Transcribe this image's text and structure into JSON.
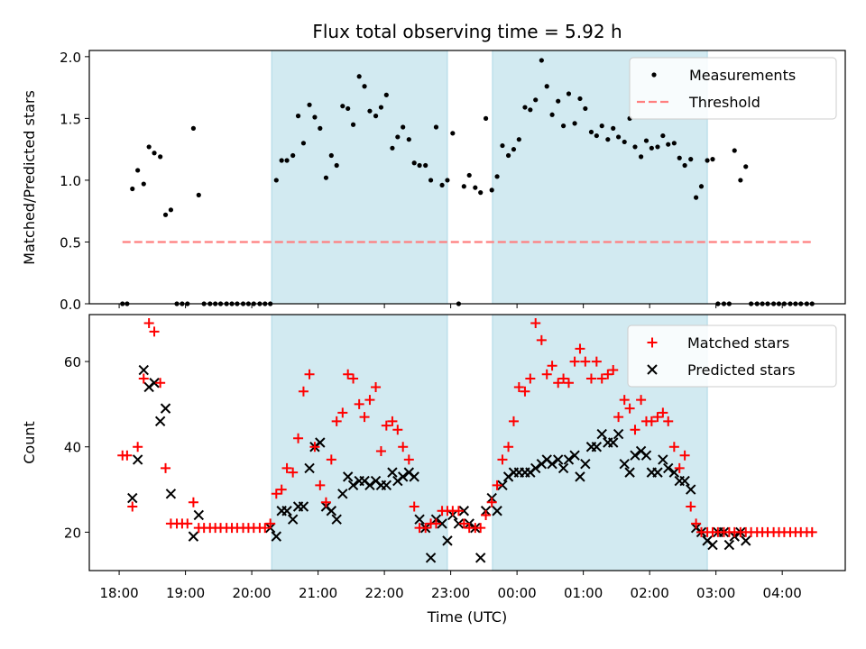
{
  "title": "Flux total observing time = 5.92 h",
  "colors": {
    "band": "#add8e6",
    "measurement": "#000000",
    "threshold": "#ff7f7f",
    "matched": "#ff0000",
    "predicted": "#000000"
  },
  "chart_data": [
    {
      "type": "scatter",
      "title": "Flux total observing time = 5.92 h",
      "xlabel": "",
      "ylabel": "Matched/Predicted stars",
      "xlim": [
        17.55,
        28.95
      ],
      "ylim": [
        0,
        2.05
      ],
      "yticks": [
        0.0,
        0.5,
        1.0,
        1.5,
        2.0
      ],
      "ytick_labels": [
        "0.0",
        "0.5",
        "1.0",
        "1.5",
        "2.0"
      ],
      "grid": false,
      "legend": {
        "position": "top-right",
        "entries": [
          {
            "label": "Measurements",
            "marker": "dot",
            "color": "#000000"
          },
          {
            "label": "Threshold",
            "marker": "dashed-line",
            "color": "#ff7f7f"
          }
        ]
      },
      "shaded_intervals": [
        [
          20.3,
          22.95
        ],
        [
          23.63,
          26.87
        ]
      ],
      "threshold": {
        "y": 0.5,
        "x_range": [
          18.05,
          28.45
        ],
        "label": "Threshold"
      },
      "series": [
        {
          "name": "Measurements",
          "x": [
            18.05,
            18.12,
            18.2,
            18.28,
            18.37,
            18.45,
            18.53,
            18.62,
            18.7,
            18.78,
            18.87,
            18.95,
            19.03,
            19.12,
            19.2,
            19.28,
            19.37,
            19.45,
            19.53,
            19.62,
            19.7,
            19.78,
            19.87,
            19.95,
            20.03,
            20.12,
            20.2,
            20.28,
            20.37,
            20.45,
            20.53,
            20.62,
            20.7,
            20.78,
            20.87,
            20.95,
            21.03,
            21.12,
            21.2,
            21.28,
            21.37,
            21.45,
            21.53,
            21.62,
            21.7,
            21.78,
            21.87,
            21.95,
            22.03,
            22.12,
            22.2,
            22.28,
            22.37,
            22.45,
            22.53,
            22.62,
            22.7,
            22.78,
            22.87,
            22.95,
            23.03,
            23.12,
            23.2,
            23.28,
            23.37,
            23.45,
            23.53,
            23.62,
            23.7,
            23.78,
            23.87,
            23.95,
            24.03,
            24.12,
            24.2,
            24.28,
            24.37,
            24.45,
            24.53,
            24.62,
            24.7,
            24.78,
            24.87,
            24.95,
            25.03,
            25.12,
            25.2,
            25.28,
            25.37,
            25.45,
            25.53,
            25.62,
            25.7,
            25.78,
            25.87,
            25.95,
            26.03,
            26.12,
            26.2,
            26.28,
            26.37,
            26.45,
            26.53,
            26.62,
            26.7,
            26.78,
            26.87,
            26.95,
            27.03,
            27.12,
            27.2,
            27.28,
            27.37,
            27.45,
            27.53,
            27.62,
            27.7,
            27.78,
            27.87,
            27.95,
            28.03,
            28.12,
            28.2,
            28.28,
            28.37,
            28.45
          ],
          "y": [
            0,
            0,
            0.93,
            1.08,
            0.97,
            1.27,
            1.22,
            1.19,
            0.72,
            0.76,
            0,
            0,
            0,
            1.42,
            0.88,
            0,
            0,
            0,
            0,
            0,
            0,
            0,
            0,
            0,
            0,
            0,
            0,
            0,
            1.0,
            1.16,
            1.16,
            1.2,
            1.52,
            1.3,
            1.61,
            1.51,
            1.42,
            1.02,
            1.2,
            1.12,
            1.6,
            1.58,
            1.45,
            1.84,
            1.76,
            1.56,
            1.52,
            1.59,
            1.69,
            1.26,
            1.35,
            1.43,
            1.33,
            1.14,
            1.12,
            1.12,
            1.0,
            1.43,
            0.96,
            1.0,
            1.38,
            0,
            0.95,
            1.04,
            0.94,
            0.9,
            1.5,
            0.92,
            1.03,
            1.28,
            1.2,
            1.25,
            1.33,
            1.59,
            1.57,
            1.65,
            1.97,
            1.76,
            1.53,
            1.64,
            1.44,
            1.7,
            1.46,
            1.66,
            1.58,
            1.39,
            1.36,
            1.44,
            1.33,
            1.42,
            1.35,
            1.31,
            1.5,
            1.27,
            1.19,
            1.32,
            1.26,
            1.27,
            1.36,
            1.29,
            1.3,
            1.18,
            1.12,
            1.17,
            0.86,
            0.95,
            1.16,
            1.17,
            0,
            0,
            0,
            1.24,
            1.0,
            1.11,
            0,
            0,
            0,
            0,
            0,
            0,
            0,
            0,
            0,
            0,
            0,
            0
          ]
        }
      ]
    },
    {
      "type": "scatter",
      "xlabel": "Time (UTC)",
      "ylabel": "Count",
      "xlim": [
        17.55,
        28.95
      ],
      "ylim": [
        11,
        71
      ],
      "xticks": [
        18,
        19,
        20,
        21,
        22,
        23,
        24,
        25,
        26,
        27,
        28
      ],
      "xtick_labels": [
        "18:00",
        "19:00",
        "20:00",
        "21:00",
        "22:00",
        "23:00",
        "00:00",
        "01:00",
        "02:00",
        "03:00",
        "04:00"
      ],
      "yticks": [
        20,
        40,
        60
      ],
      "ytick_labels": [
        "20",
        "40",
        "60"
      ],
      "grid": false,
      "legend": {
        "position": "top-right",
        "entries": [
          {
            "label": "Matched stars",
            "marker": "plus",
            "color": "#ff0000"
          },
          {
            "label": "Predicted stars",
            "marker": "x",
            "color": "#000000"
          }
        ]
      },
      "shaded_intervals": [
        [
          20.3,
          22.95
        ],
        [
          23.63,
          26.87
        ]
      ],
      "series": [
        {
          "name": "Matched stars",
          "x": [
            18.05,
            18.12,
            18.2,
            18.28,
            18.37,
            18.45,
            18.53,
            18.62,
            18.7,
            18.78,
            18.87,
            18.95,
            19.03,
            19.12,
            19.2,
            19.28,
            19.37,
            19.45,
            19.53,
            19.62,
            19.7,
            19.78,
            19.87,
            19.95,
            20.03,
            20.12,
            20.2,
            20.28,
            20.37,
            20.45,
            20.53,
            20.62,
            20.7,
            20.78,
            20.87,
            20.95,
            21.03,
            21.12,
            21.2,
            21.28,
            21.37,
            21.45,
            21.53,
            21.62,
            21.7,
            21.78,
            21.87,
            21.95,
            22.03,
            22.12,
            22.2,
            22.28,
            22.37,
            22.45,
            22.53,
            22.62,
            22.7,
            22.78,
            22.87,
            22.95,
            23.03,
            23.12,
            23.2,
            23.28,
            23.37,
            23.45,
            23.53,
            23.62,
            23.7,
            23.78,
            23.87,
            23.95,
            24.03,
            24.12,
            24.2,
            24.28,
            24.37,
            24.45,
            24.53,
            24.62,
            24.7,
            24.78,
            24.87,
            24.95,
            25.03,
            25.12,
            25.2,
            25.28,
            25.37,
            25.45,
            25.53,
            25.62,
            25.7,
            25.78,
            25.87,
            25.95,
            26.03,
            26.12,
            26.2,
            26.28,
            26.37,
            26.45,
            26.53,
            26.62,
            26.7,
            26.78,
            26.87,
            26.95,
            27.03,
            27.12,
            27.2,
            27.28,
            27.37,
            27.45,
            27.53,
            27.62,
            27.7,
            27.78,
            27.87,
            27.95,
            28.03,
            28.12,
            28.2,
            28.28,
            28.37,
            28.45
          ],
          "y": [
            38,
            38,
            26,
            40,
            56,
            69,
            67,
            55,
            35,
            22,
            22,
            22,
            22,
            27,
            21,
            21,
            21,
            21,
            21,
            21,
            21,
            21,
            21,
            21,
            21,
            21,
            21,
            22,
            29,
            30,
            35,
            34,
            42,
            53,
            57,
            40,
            31,
            27,
            37,
            46,
            48,
            57,
            56,
            50,
            47,
            51,
            54,
            39,
            45,
            46,
            44,
            40,
            37,
            26,
            21,
            21,
            22,
            22,
            25,
            25,
            25,
            25,
            22,
            21,
            21,
            21,
            24,
            27,
            31,
            37,
            40,
            46,
            54,
            53,
            56,
            69,
            65,
            57,
            59,
            55,
            56,
            55,
            60,
            63,
            60,
            56,
            60,
            56,
            57,
            58,
            47,
            51,
            49,
            44,
            51,
            46,
            46,
            47,
            48,
            46,
            40,
            35,
            38,
            26,
            22,
            20,
            20,
            20,
            20,
            20,
            20,
            20,
            20,
            20,
            20,
            20,
            20,
            20,
            20,
            20,
            20,
            20,
            20,
            20,
            20,
            20
          ]
        },
        {
          "name": "Predicted stars",
          "x": [
            18.2,
            18.28,
            18.37,
            18.45,
            18.53,
            18.62,
            18.7,
            18.78,
            19.12,
            19.2,
            20.28,
            20.37,
            20.45,
            20.53,
            20.62,
            20.7,
            20.78,
            20.87,
            20.95,
            21.03,
            21.12,
            21.2,
            21.28,
            21.37,
            21.45,
            21.53,
            21.62,
            21.7,
            21.78,
            21.87,
            21.95,
            22.03,
            22.12,
            22.2,
            22.28,
            22.37,
            22.45,
            22.53,
            22.62,
            22.7,
            22.78,
            22.87,
            22.95,
            23.03,
            23.12,
            23.2,
            23.28,
            23.37,
            23.45,
            23.53,
            23.62,
            23.7,
            23.78,
            23.87,
            23.95,
            24.03,
            24.12,
            24.2,
            24.28,
            24.37,
            24.45,
            24.53,
            24.62,
            24.7,
            24.78,
            24.87,
            24.95,
            25.03,
            25.12,
            25.2,
            25.28,
            25.37,
            25.45,
            25.53,
            25.62,
            25.7,
            25.78,
            25.87,
            25.95,
            26.03,
            26.12,
            26.2,
            26.28,
            26.37,
            26.45,
            26.53,
            26.62,
            26.7,
            26.78,
            26.87,
            26.95,
            27.03,
            27.12,
            27.2,
            27.28,
            27.37,
            27.45
          ],
          "y": [
            28,
            37,
            58,
            54,
            55,
            46,
            49,
            29,
            19,
            24,
            21,
            19,
            25,
            25,
            23,
            26,
            26,
            35,
            40,
            41,
            26,
            25,
            23,
            29,
            33,
            31,
            32,
            32,
            31,
            32,
            31,
            31,
            34,
            32,
            33,
            34,
            33,
            23,
            21,
            14,
            23,
            22,
            18,
            24,
            22,
            25,
            22,
            21,
            14,
            25,
            28,
            25,
            31,
            33,
            34,
            34,
            34,
            34,
            35,
            36,
            37,
            36,
            37,
            35,
            37,
            38,
            33,
            36,
            40,
            40,
            43,
            41,
            41,
            43,
            36,
            34,
            38,
            39,
            38,
            34,
            34,
            37,
            35,
            34,
            32,
            32,
            30,
            21,
            20,
            18,
            17,
            20,
            20,
            17,
            19,
            20,
            18
          ]
        }
      ]
    }
  ]
}
